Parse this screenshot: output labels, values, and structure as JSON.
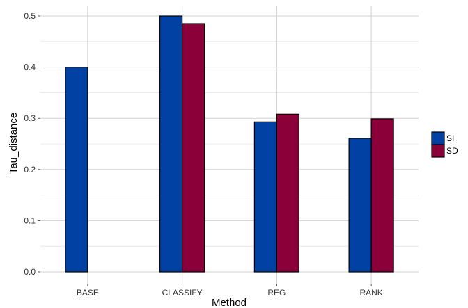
{
  "chart_data": {
    "type": "bar",
    "categories": [
      "BASE",
      "CLASSIFY",
      "REG",
      "RANK"
    ],
    "series": [
      {
        "name": "SI",
        "values": [
          0.4,
          0.5,
          0.293,
          0.261
        ],
        "color": "#0041a3"
      },
      {
        "name": "SD",
        "values": [
          null,
          0.485,
          0.308,
          0.299
        ],
        "color": "#8b0038"
      }
    ],
    "title": "",
    "xlabel": "Method",
    "ylabel": "Tau_distance",
    "ylim": [
      0,
      0.5
    ],
    "yticks": [
      "0.0",
      "0.1",
      "0.2",
      "0.3",
      "0.4",
      "0.5"
    ],
    "grid": true,
    "legend_position": "right"
  }
}
